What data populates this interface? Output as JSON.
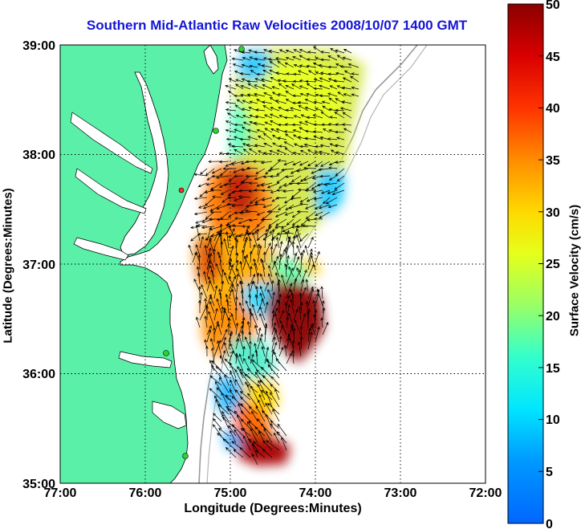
{
  "title": "Southern Mid-Atlantic Raw Velocities 2008/10/07 1400 GMT",
  "x_axis": {
    "label": "Longitude (Degrees:Minutes)",
    "ticks": [
      "77:00",
      "76:00",
      "75:00",
      "74:00",
      "73:00",
      "72:00"
    ]
  },
  "y_axis": {
    "label": "Latitude (Degrees:Minutes)",
    "ticks": [
      "39:00",
      "38:00",
      "37:00",
      "36:00",
      "35:00"
    ]
  },
  "colorbar": {
    "label": "Surface Velocity (cm/s)",
    "ticks": [
      "50",
      "45",
      "40",
      "35",
      "30",
      "25",
      "20",
      "15",
      "10",
      "5",
      "0"
    ],
    "min": 0,
    "max": 50,
    "colormap": "jet"
  },
  "colors": {
    "land": "#5af0a8",
    "water": "#ffffff",
    "title": "#1515d6",
    "coastline": "#000000",
    "bathymetry": "#999999",
    "station": "#2fd02f",
    "station_alt": "#ff2a2a"
  },
  "map": {
    "lon_range": [
      -77,
      -72
    ],
    "lat_range": [
      35,
      39
    ],
    "grid": true
  }
}
